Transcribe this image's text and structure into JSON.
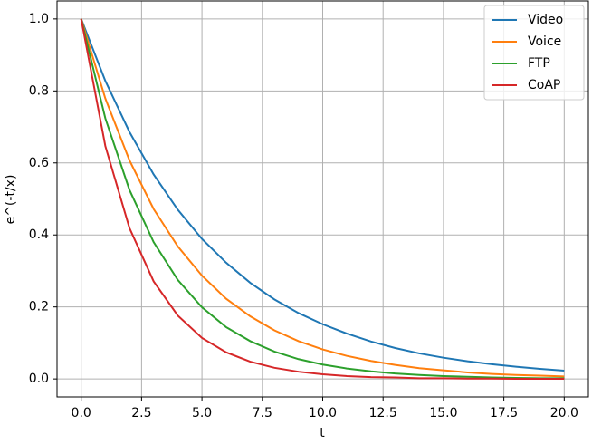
{
  "chart_data": {
    "type": "line",
    "xlabel": "t",
    "ylabel": "e^(-t/x)",
    "x": [
      0,
      1,
      2,
      3,
      4,
      5,
      6,
      7,
      8,
      9,
      10,
      11,
      12,
      13,
      14,
      15,
      16,
      17,
      18,
      19,
      20
    ],
    "series": [
      {
        "name": "Video",
        "color": "#1f77b4",
        "values": [
          1,
          0.828,
          0.686,
          0.568,
          0.47,
          0.389,
          0.323,
          0.267,
          0.221,
          0.183,
          0.152,
          0.126,
          0.104,
          0.086,
          0.071,
          0.059,
          0.049,
          0.041,
          0.034,
          0.028,
          0.023
        ]
      },
      {
        "name": "Voice",
        "color": "#ff7f0e",
        "values": [
          1,
          0.779,
          0.607,
          0.472,
          0.368,
          0.287,
          0.223,
          0.174,
          0.135,
          0.105,
          0.082,
          0.064,
          0.05,
          0.039,
          0.03,
          0.024,
          0.018,
          0.014,
          0.011,
          0.009,
          0.007
        ]
      },
      {
        "name": "FTP",
        "color": "#2ca02c",
        "values": [
          1,
          0.724,
          0.525,
          0.38,
          0.275,
          0.199,
          0.144,
          0.105,
          0.076,
          0.055,
          0.04,
          0.029,
          0.021,
          0.015,
          0.011,
          0.008,
          0.006,
          0.004,
          0.003,
          0.002,
          0.002
        ]
      },
      {
        "name": "CoAP",
        "color": "#d62728",
        "values": [
          1,
          0.647,
          0.419,
          0.271,
          0.176,
          0.114,
          0.074,
          0.048,
          0.031,
          0.02,
          0.013,
          0.008,
          0.005,
          0.004,
          0.002,
          0.002,
          0.001,
          0.001,
          0.0004,
          0.0003,
          0.0002
        ]
      }
    ],
    "xlim": [
      -1,
      21
    ],
    "ylim": [
      -0.05,
      1.05
    ],
    "xticks": [
      {
        "value": 0,
        "label": "0.0"
      },
      {
        "value": 2.5,
        "label": "2.5"
      },
      {
        "value": 5,
        "label": "5.0"
      },
      {
        "value": 7.5,
        "label": "7.5"
      },
      {
        "value": 10,
        "label": "10.0"
      },
      {
        "value": 12.5,
        "label": "12.5"
      },
      {
        "value": 15,
        "label": "15.0"
      },
      {
        "value": 17.5,
        "label": "17.5"
      },
      {
        "value": 20,
        "label": "20.0"
      }
    ],
    "yticks": [
      {
        "value": 0,
        "label": "0.0"
      },
      {
        "value": 0.2,
        "label": "0.2"
      },
      {
        "value": 0.4,
        "label": "0.4"
      },
      {
        "value": 0.6,
        "label": "0.6"
      },
      {
        "value": 0.8,
        "label": "0.8"
      },
      {
        "value": 1,
        "label": "1.0"
      }
    ],
    "grid": true,
    "legend": "upper right"
  }
}
